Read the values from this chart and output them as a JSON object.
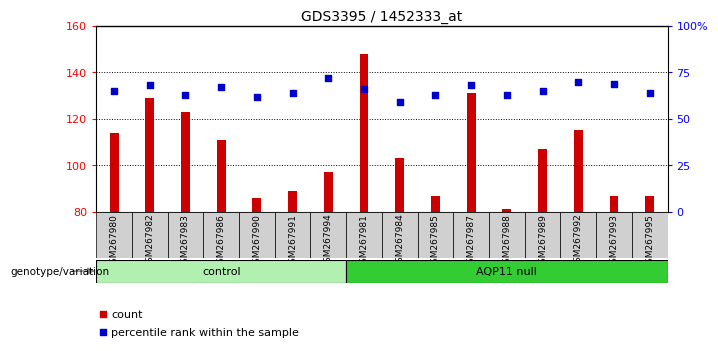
{
  "title": "GDS3395 / 1452333_at",
  "samples": [
    "GSM267980",
    "GSM267982",
    "GSM267983",
    "GSM267986",
    "GSM267990",
    "GSM267991",
    "GSM267994",
    "GSM267981",
    "GSM267984",
    "GSM267985",
    "GSM267987",
    "GSM267988",
    "GSM267989",
    "GSM267992",
    "GSM267993",
    "GSM267995"
  ],
  "counts": [
    114,
    129,
    123,
    111,
    86,
    89,
    97,
    148,
    103,
    87,
    131,
    81,
    107,
    115,
    87,
    87
  ],
  "percentile_ranks": [
    65,
    68,
    63,
    67,
    62,
    64,
    72,
    66,
    59,
    63,
    68,
    63,
    65,
    70,
    69,
    64
  ],
  "groups": [
    {
      "label": "control",
      "start": 0,
      "end": 7,
      "color": "#b2f0b2"
    },
    {
      "label": "AQP11 null",
      "start": 7,
      "end": 16,
      "color": "#33cc33"
    }
  ],
  "ylim_left": [
    80,
    160
  ],
  "ylim_right": [
    0,
    100
  ],
  "yticks_left": [
    80,
    100,
    120,
    140,
    160
  ],
  "yticks_right": [
    0,
    25,
    50,
    75,
    100
  ],
  "ytick_labels_right": [
    "0",
    "25",
    "50",
    "75",
    "100%"
  ],
  "bar_color": "#cc0000",
  "dot_color": "#0000cc",
  "bar_width": 0.25,
  "background_color": "#ffffff",
  "plot_bg_color": "#ffffff",
  "tick_bg_color": "#d0d0d0",
  "legend_count_color": "#cc0000",
  "legend_dot_color": "#0000cc",
  "xlabel_bottom": "genotype/variation",
  "label_fontsize": 8,
  "title_fontsize": 10
}
